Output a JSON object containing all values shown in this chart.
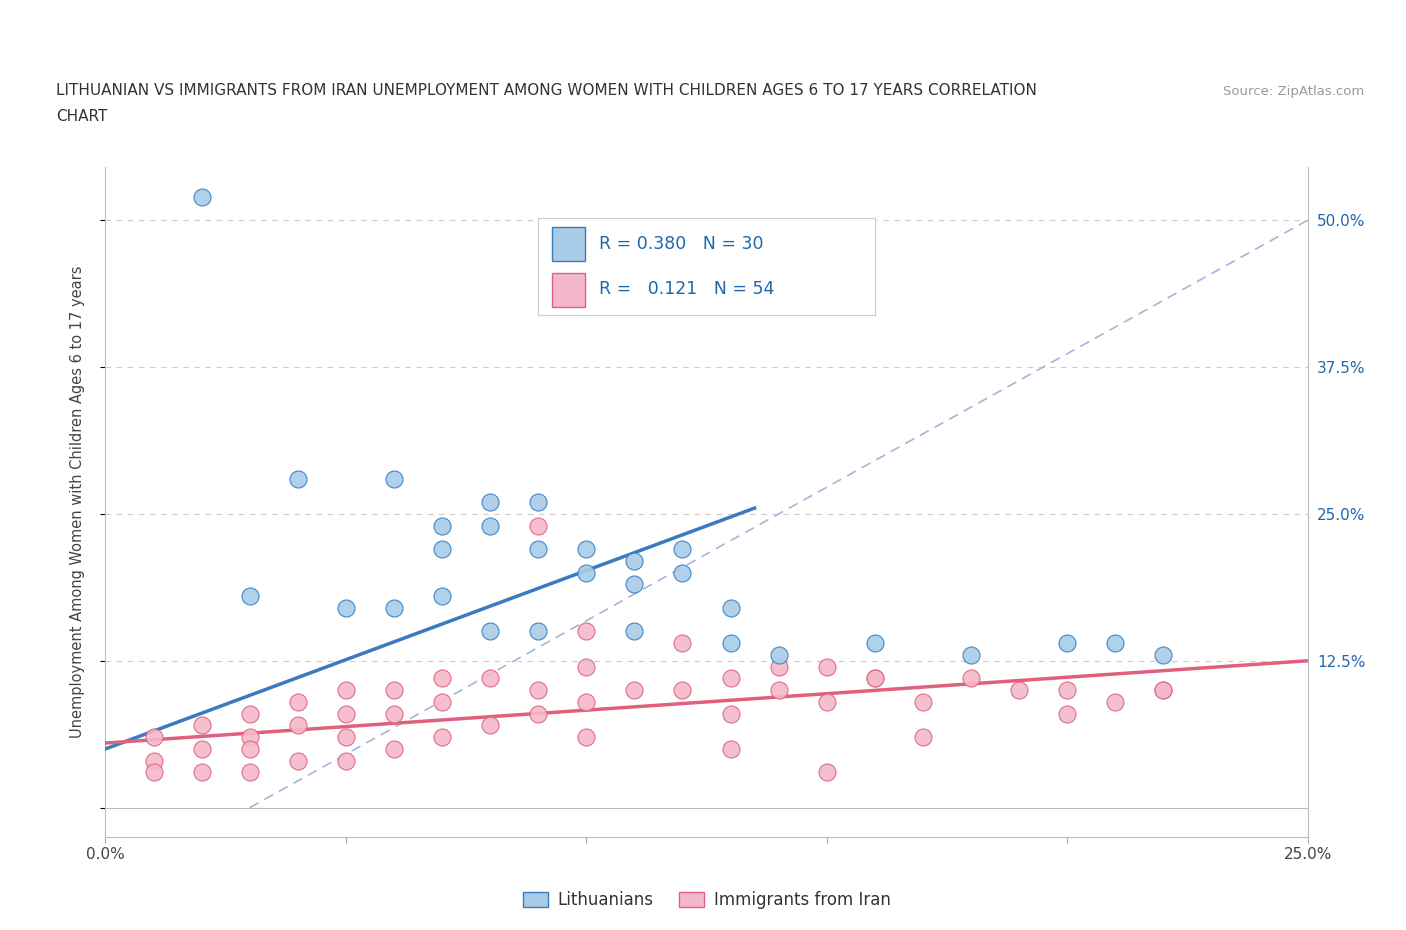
{
  "title_line1": "LITHUANIAN VS IMMIGRANTS FROM IRAN UNEMPLOYMENT AMONG WOMEN WITH CHILDREN AGES 6 TO 17 YEARS CORRELATION",
  "title_line2": "CHART",
  "source": "Source: ZipAtlas.com",
  "ylabel": "Unemployment Among Women with Children Ages 6 to 17 years",
  "xlim": [
    0.0,
    0.25
  ],
  "ylim": [
    -0.025,
    0.545
  ],
  "yticks": [
    0.0,
    0.125,
    0.25,
    0.375,
    0.5
  ],
  "ytick_labels_right": [
    "",
    "12.5%",
    "25.0%",
    "37.5%",
    "50.0%"
  ],
  "xticks": [
    0.0,
    0.05,
    0.1,
    0.15,
    0.2,
    0.25
  ],
  "xtick_labels": [
    "0.0%",
    "",
    "",
    "",
    "",
    "25.0%"
  ],
  "legend_R1": "0.380",
  "legend_N1": "30",
  "legend_R2": "0.121",
  "legend_N2": "54",
  "color_blue": "#a8cce8",
  "color_pink": "#f4b8cb",
  "color_blue_dark": "#3a7abf",
  "color_pink_dark": "#e0607e",
  "color_dashed": "#a0b8d8",
  "blue_scatter_x": [
    0.02,
    0.04,
    0.06,
    0.07,
    0.07,
    0.08,
    0.08,
    0.09,
    0.09,
    0.1,
    0.1,
    0.11,
    0.11,
    0.12,
    0.12,
    0.13,
    0.14,
    0.16,
    0.2,
    0.21,
    0.03,
    0.05,
    0.06,
    0.07,
    0.08,
    0.09,
    0.11,
    0.13,
    0.18,
    0.22
  ],
  "blue_scatter_y": [
    0.52,
    0.28,
    0.28,
    0.22,
    0.24,
    0.24,
    0.26,
    0.22,
    0.26,
    0.2,
    0.22,
    0.21,
    0.19,
    0.2,
    0.22,
    0.17,
    0.13,
    0.14,
    0.14,
    0.14,
    0.18,
    0.17,
    0.17,
    0.18,
    0.15,
    0.15,
    0.15,
    0.14,
    0.13,
    0.13
  ],
  "pink_scatter_x": [
    0.01,
    0.01,
    0.01,
    0.02,
    0.02,
    0.02,
    0.03,
    0.03,
    0.03,
    0.03,
    0.04,
    0.04,
    0.04,
    0.05,
    0.05,
    0.05,
    0.05,
    0.06,
    0.06,
    0.06,
    0.07,
    0.07,
    0.07,
    0.08,
    0.08,
    0.09,
    0.09,
    0.1,
    0.1,
    0.1,
    0.11,
    0.12,
    0.13,
    0.13,
    0.14,
    0.15,
    0.15,
    0.16,
    0.17,
    0.18,
    0.19,
    0.2,
    0.2,
    0.21,
    0.22,
    0.09,
    0.1,
    0.12,
    0.14,
    0.16,
    0.22,
    0.13,
    0.17,
    0.15
  ],
  "pink_scatter_y": [
    0.06,
    0.04,
    0.03,
    0.07,
    0.05,
    0.03,
    0.08,
    0.06,
    0.05,
    0.03,
    0.09,
    0.07,
    0.04,
    0.1,
    0.08,
    0.06,
    0.04,
    0.1,
    0.08,
    0.05,
    0.11,
    0.09,
    0.06,
    0.11,
    0.07,
    0.1,
    0.08,
    0.12,
    0.09,
    0.06,
    0.1,
    0.1,
    0.11,
    0.08,
    0.12,
    0.12,
    0.09,
    0.11,
    0.09,
    0.11,
    0.1,
    0.1,
    0.08,
    0.09,
    0.1,
    0.24,
    0.15,
    0.14,
    0.1,
    0.11,
    0.1,
    0.05,
    0.06,
    0.03
  ],
  "blue_line_x": [
    0.0,
    0.135
  ],
  "blue_line_y": [
    0.05,
    0.255
  ],
  "pink_line_x": [
    0.0,
    0.25
  ],
  "pink_line_y": [
    0.055,
    0.125
  ],
  "dashed_line_x": [
    0.03,
    0.25
  ],
  "dashed_line_y": [
    0.0,
    0.5
  ],
  "background_color": "#ffffff",
  "grid_color": "#cccccc"
}
